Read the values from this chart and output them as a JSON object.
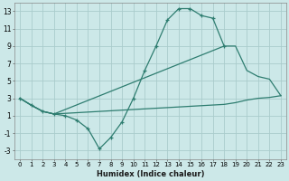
{
  "xlabel": "Humidex (Indice chaleur)",
  "bg_color": "#cce8e8",
  "grid_color": "#aacccc",
  "line_color": "#2e7d70",
  "xlim": [
    -0.5,
    23.5
  ],
  "ylim": [
    -4,
    14
  ],
  "yticks": [
    -3,
    -1,
    1,
    3,
    5,
    7,
    9,
    11,
    13
  ],
  "xticks": [
    0,
    1,
    2,
    3,
    4,
    5,
    6,
    7,
    8,
    9,
    10,
    11,
    12,
    13,
    14,
    15,
    16,
    17,
    18,
    19,
    20,
    21,
    22,
    23
  ],
  "line1_x": [
    0,
    1,
    2,
    3,
    4,
    5,
    6,
    7,
    8,
    9,
    10,
    11,
    12,
    13,
    14,
    15,
    16,
    17,
    18
  ],
  "line1_y": [
    3,
    2.2,
    1.5,
    1.2,
    1.0,
    0.5,
    -0.5,
    -2.8,
    -1.5,
    0.3,
    3.0,
    6.2,
    9.0,
    12.0,
    13.3,
    13.3,
    12.5,
    12.2,
    9.0
  ],
  "line2_x": [
    0,
    1,
    2,
    3,
    18,
    19,
    20,
    21,
    22,
    23
  ],
  "line2_y": [
    3,
    2.2,
    1.5,
    1.2,
    9.0,
    9.0,
    6.2,
    5.5,
    5.2,
    3.3
  ],
  "line3_x": [
    0,
    1,
    2,
    3,
    18,
    19,
    20,
    21,
    22,
    23
  ],
  "line3_y": [
    3,
    2.2,
    1.5,
    1.2,
    2.3,
    2.5,
    2.8,
    3.0,
    3.1,
    3.3
  ]
}
